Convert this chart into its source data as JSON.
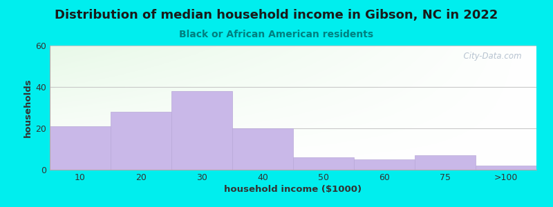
{
  "title": "Distribution of median household income in Gibson, NC in 2022",
  "subtitle": "Black or African American residents",
  "xlabel": "household income ($1000)",
  "ylabel": "households",
  "bar_labels": [
    "10",
    "20",
    "30",
    "40",
    "50",
    "60",
    "75",
    ">100"
  ],
  "bar_heights": [
    21,
    28,
    38,
    20,
    6,
    5,
    7,
    2
  ],
  "bar_color": "#c9b8e8",
  "bar_edgecolor": "#b8a8d8",
  "ylim": [
    0,
    60
  ],
  "yticks": [
    0,
    20,
    40,
    60
  ],
  "background_color": "#00EEEE",
  "plot_bg_color_topleft": "#d8f0d0",
  "plot_bg_color_topright": "#f0f8f0",
  "plot_bg_color_bottom": "#ffffff",
  "title_fontsize": 13,
  "subtitle_fontsize": 10,
  "subtitle_color": "#008080",
  "axis_label_fontsize": 9.5,
  "tick_fontsize": 9,
  "watermark_text": "  City-Data.com",
  "watermark_color": "#aab8c8",
  "grid_color": "#c8c8c8",
  "title_color": "#1a1a1a"
}
